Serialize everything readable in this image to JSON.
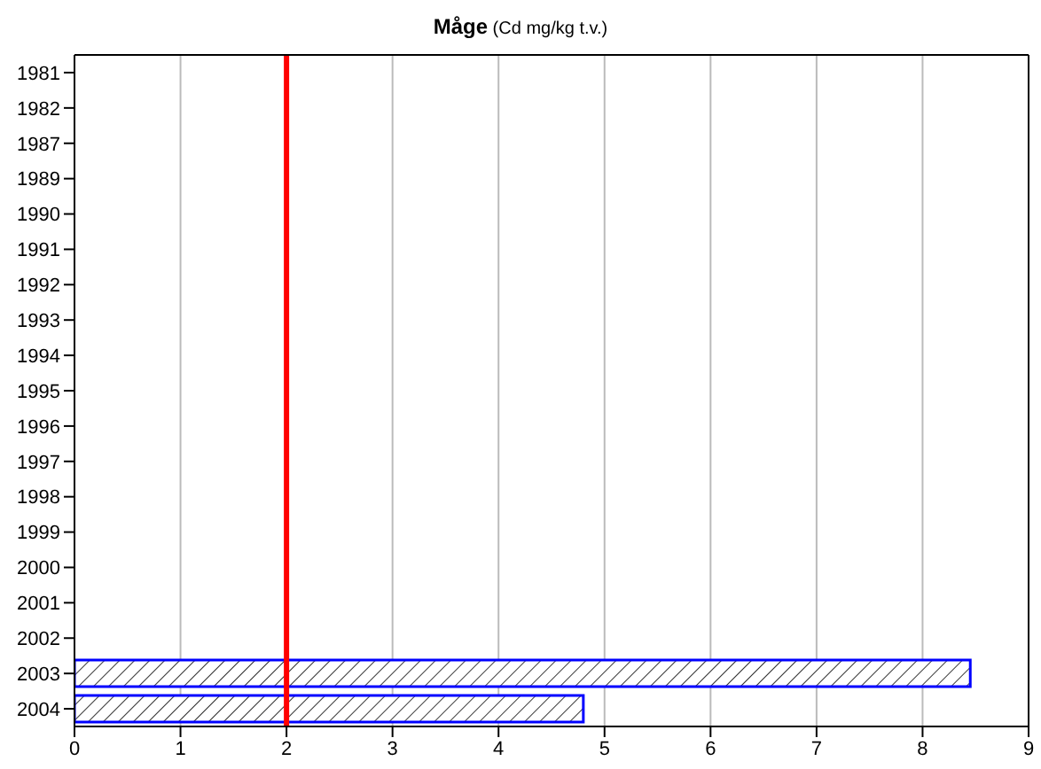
{
  "chart_data": {
    "type": "bar",
    "orientation": "horizontal",
    "title": "Måge (Cd mg/kg t.v.)",
    "categories": [
      "1981",
      "1982",
      "1987",
      "1989",
      "1990",
      "1991",
      "1992",
      "1993",
      "1994",
      "1995",
      "1996",
      "1997",
      "1998",
      "1999",
      "2000",
      "2001",
      "2002",
      "2003",
      "2004"
    ],
    "values": [
      null,
      null,
      null,
      null,
      null,
      null,
      null,
      null,
      null,
      null,
      null,
      null,
      null,
      null,
      null,
      null,
      null,
      8.45,
      4.8
    ],
    "color": "#0000ff",
    "xlim": [
      0,
      9
    ],
    "xticks": [
      0,
      1,
      2,
      3,
      4,
      5,
      6,
      7,
      8,
      9
    ],
    "grid": "x",
    "ref_lines": [
      {
        "axis": "x",
        "value": 2,
        "color": "#ff0000"
      }
    ]
  }
}
